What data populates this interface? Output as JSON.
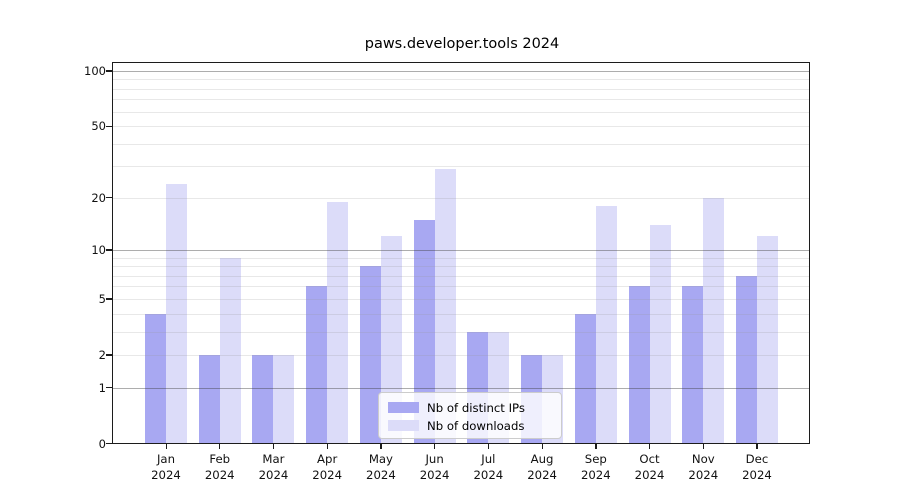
{
  "title": "paws.developer.tools 2024",
  "chart_data": {
    "type": "bar",
    "categories": [
      {
        "month": "Jan",
        "year": "2024"
      },
      {
        "month": "Feb",
        "year": "2024"
      },
      {
        "month": "Mar",
        "year": "2024"
      },
      {
        "month": "Apr",
        "year": "2024"
      },
      {
        "month": "May",
        "year": "2024"
      },
      {
        "month": "Jun",
        "year": "2024"
      },
      {
        "month": "Jul",
        "year": "2024"
      },
      {
        "month": "Aug",
        "year": "2024"
      },
      {
        "month": "Sep",
        "year": "2024"
      },
      {
        "month": "Oct",
        "year": "2024"
      },
      {
        "month": "Nov",
        "year": "2024"
      },
      {
        "month": "Dec",
        "year": "2024"
      }
    ],
    "series": [
      {
        "name": "Nb of distinct IPs",
        "color": "#a8a8f2",
        "values": [
          4,
          2,
          2,
          6,
          8,
          15,
          3,
          2,
          4,
          6,
          6,
          7
        ]
      },
      {
        "name": "Nb of downloads",
        "color": "#dcdcf9",
        "values": [
          24,
          9,
          2,
          19,
          12,
          29,
          3,
          2,
          18,
          14,
          20,
          12
        ]
      }
    ],
    "yscale": "log10(value+1)",
    "ylim": [
      0,
      113
    ],
    "y_tick_labels": [
      0,
      1,
      2,
      5,
      10,
      20,
      50,
      100
    ],
    "y_ticks_major": [
      1,
      10,
      100
    ],
    "y_ticks_minor": [
      2,
      3,
      4,
      5,
      6,
      7,
      8,
      9,
      20,
      30,
      40,
      50,
      60,
      70,
      80,
      90
    ],
    "grid": true,
    "legend_position": "lower center",
    "xlabel": "",
    "ylabel": ""
  }
}
